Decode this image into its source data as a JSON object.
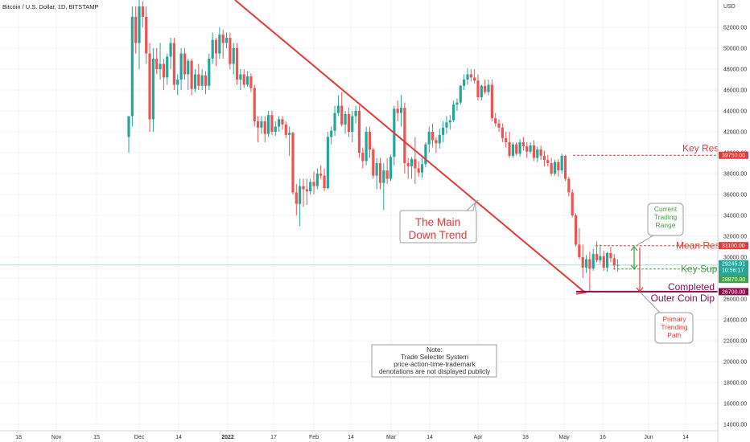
{
  "header": {
    "title": "Bitcoin / U.S. Dollar, 1D, BITSTAMP",
    "currency": "USD"
  },
  "chart_data": {
    "type": "candlestick",
    "y_axis": {
      "range": [
        13000,
        54000
      ],
      "ticks": [
        "52000.00",
        "50000.00",
        "48000.00",
        "46000.00",
        "44000.00",
        "42000.00",
        "40000.00",
        "38000.00",
        "36000.00",
        "34000.00",
        "32000.00",
        "30000.00",
        "28000.00",
        "26000.00",
        "24000.00",
        "22000.00",
        "20000.00",
        "18000.00",
        "16000.00",
        "14000.00"
      ]
    },
    "x_axis": {
      "ticks": [
        "18",
        "Nov",
        "15",
        "Dec",
        "14",
        "2022",
        "17",
        "Feb",
        "14",
        "Mar",
        "14",
        "Apr",
        "18",
        "May",
        "16",
        "Jun",
        "14"
      ]
    },
    "candles": [
      [
        41500,
        43500,
        40000,
        43500
      ],
      [
        43500,
        54000,
        42500,
        53000
      ],
      [
        53000,
        54000,
        49500,
        50500
      ],
      [
        50500,
        55000,
        48000,
        54000
      ],
      [
        54000,
        54500,
        52000,
        53000
      ],
      [
        53000,
        54000,
        48500,
        49500
      ],
      [
        49500,
        50500,
        42000,
        43200
      ],
      [
        43200,
        50000,
        42000,
        49000
      ],
      [
        49000,
        50000,
        47500,
        48000
      ],
      [
        48000,
        50500,
        47000,
        48500
      ],
      [
        48500,
        49000,
        46000,
        47200
      ],
      [
        47200,
        49500,
        46500,
        49200
      ],
      [
        49200,
        51000,
        48000,
        50500
      ],
      [
        50500,
        51000,
        46000,
        46500
      ],
      [
        46500,
        47500,
        45500,
        47000
      ],
      [
        47000,
        50000,
        46000,
        49500
      ],
      [
        49500,
        50000,
        47000,
        47500
      ],
      [
        47500,
        49000,
        46000,
        48800
      ],
      [
        48800,
        49000,
        45500,
        46100
      ],
      [
        46100,
        48000,
        45800,
        47500
      ],
      [
        47500,
        48500,
        46000,
        46400
      ],
      [
        46400,
        48000,
        46000,
        47400
      ],
      [
        47400,
        47800,
        45600,
        46400
      ],
      [
        46400,
        49500,
        46000,
        49000
      ],
      [
        49000,
        51500,
        48500,
        50800
      ],
      [
        50800,
        51000,
        48300,
        49500
      ],
      [
        49500,
        52000,
        49000,
        51300
      ],
      [
        51300,
        51800,
        49000,
        50500
      ],
      [
        50500,
        51500,
        50000,
        51000
      ],
      [
        51000,
        51500,
        48000,
        48500
      ],
      [
        48500,
        50500,
        47500,
        50000
      ],
      [
        50000,
        50500,
        46500,
        47000
      ],
      [
        47000,
        48000,
        46000,
        47500
      ],
      [
        47500,
        48000,
        46200,
        46500
      ],
      [
        46500,
        47800,
        46300,
        47300
      ],
      [
        47300,
        47600,
        45800,
        46200
      ],
      [
        46200,
        46500,
        42500,
        43000
      ],
      [
        43000,
        43500,
        41000,
        42400
      ],
      [
        42400,
        43500,
        41800,
        43000
      ],
      [
        43000,
        43500,
        41000,
        41800
      ],
      [
        41800,
        44000,
        41500,
        43600
      ],
      [
        43600,
        44000,
        41700,
        42000
      ],
      [
        42000,
        43000,
        41600,
        42500
      ],
      [
        42500,
        43500,
        42000,
        43200
      ],
      [
        43200,
        43500,
        42200,
        42700
      ],
      [
        42700,
        43000,
        41400,
        41700
      ],
      [
        41700,
        42500,
        39700,
        41900
      ],
      [
        41900,
        42000,
        36000,
        36200
      ],
      [
        36200,
        37000,
        34000,
        35100
      ],
      [
        35100,
        37500,
        33000,
        36800
      ],
      [
        36800,
        37500,
        34800,
        36500
      ],
      [
        36500,
        37500,
        35000,
        36300
      ],
      [
        36300,
        37500,
        36000,
        37200
      ],
      [
        37200,
        38200,
        36000,
        36800
      ],
      [
        36800,
        38500,
        36500,
        38000
      ],
      [
        38000,
        38800,
        37500,
        37800
      ],
      [
        37800,
        38500,
        36300,
        36600
      ],
      [
        36600,
        42000,
        36500,
        41500
      ],
      [
        41500,
        42500,
        40800,
        42100
      ],
      [
        42100,
        44500,
        41600,
        43800
      ],
      [
        43800,
        45500,
        43500,
        44500
      ],
      [
        44500,
        45800,
        42500,
        42700
      ],
      [
        42700,
        44000,
        41800,
        43700
      ],
      [
        43700,
        44300,
        41500,
        42000
      ],
      [
        42000,
        44000,
        41000,
        43500
      ],
      [
        43500,
        44500,
        42800,
        44000
      ],
      [
        44000,
        44500,
        39500,
        40000
      ],
      [
        40000,
        40500,
        38500,
        39200
      ],
      [
        39200,
        42500,
        38800,
        42000
      ],
      [
        42000,
        42500,
        39500,
        40300
      ],
      [
        40300,
        40500,
        37500,
        37800
      ],
      [
        37800,
        39500,
        36500,
        39000
      ],
      [
        39000,
        39500,
        36500,
        37100
      ],
      [
        37100,
        39000,
        34500,
        38300
      ],
      [
        38300,
        39500,
        37000,
        37500
      ],
      [
        37500,
        39800,
        37300,
        39600
      ],
      [
        39600,
        44500,
        38800,
        44200
      ],
      [
        44200,
        45000,
        43000,
        43800
      ],
      [
        43800,
        45500,
        42500,
        44300
      ],
      [
        44300,
        44800,
        38000,
        39000
      ],
      [
        39000,
        39500,
        37500,
        38700
      ],
      [
        38700,
        39600,
        37500,
        39400
      ],
      [
        39400,
        41500,
        37000,
        38500
      ],
      [
        38500,
        39200,
        37700,
        38100
      ],
      [
        38100,
        39500,
        37600,
        38900
      ],
      [
        38900,
        41000,
        38600,
        40800
      ],
      [
        40800,
        42500,
        40000,
        42000
      ],
      [
        42000,
        42800,
        40500,
        41200
      ],
      [
        41200,
        41500,
        40000,
        40900
      ],
      [
        40900,
        42300,
        40400,
        41700
      ],
      [
        41700,
        43000,
        41000,
        42400
      ],
      [
        42400,
        43500,
        41800,
        42900
      ],
      [
        42900,
        43600,
        42200,
        43100
      ],
      [
        43100,
        45000,
        42900,
        44600
      ],
      [
        44600,
        45200,
        44000,
        44800
      ],
      [
        44800,
        46500,
        44600,
        46400
      ],
      [
        46400,
        47500,
        46000,
        47000
      ],
      [
        47000,
        48100,
        46500,
        47500
      ],
      [
        47500,
        48000,
        46800,
        47200
      ],
      [
        47200,
        48000,
        46600,
        46900
      ],
      [
        46900,
        47500,
        45000,
        45300
      ],
      [
        45300,
        46500,
        45000,
        46400
      ],
      [
        46400,
        47000,
        45600,
        45800
      ],
      [
        45800,
        47000,
        45500,
        46500
      ],
      [
        46500,
        47000,
        43000,
        43300
      ],
      [
        43300,
        43800,
        42500,
        42800
      ],
      [
        42800,
        43200,
        42000,
        42400
      ],
      [
        42400,
        42800,
        41000,
        41400
      ],
      [
        41400,
        42000,
        40500,
        41000
      ],
      [
        41000,
        42000,
        39500,
        39700
      ],
      [
        39700,
        41000,
        39500,
        40800
      ],
      [
        40800,
        41000,
        39700,
        39900
      ],
      [
        39900,
        41300,
        39600,
        41000
      ],
      [
        41000,
        41500,
        40200,
        40600
      ],
      [
        40600,
        41000,
        39500,
        40100
      ],
      [
        40100,
        41000,
        39900,
        40700
      ],
      [
        40700,
        41200,
        39200,
        39500
      ],
      [
        39500,
        40600,
        39100,
        40300
      ],
      [
        40300,
        40700,
        39300,
        39700
      ],
      [
        39700,
        40200,
        38700,
        39300
      ],
      [
        39300,
        39800,
        38700,
        39000
      ],
      [
        39000,
        39500,
        37800,
        38000
      ],
      [
        38000,
        39300,
        37800,
        39100
      ],
      [
        39100,
        39400,
        37700,
        38300
      ],
      [
        38300,
        39900,
        38000,
        39700
      ],
      [
        39700,
        39800,
        37300,
        37500
      ],
      [
        37500,
        37700,
        35800,
        36200
      ],
      [
        36200,
        36500,
        33800,
        34000
      ],
      [
        34000,
        34200,
        31000,
        31200
      ],
      [
        31200,
        32800,
        29800,
        30000
      ],
      [
        30000,
        31200,
        28000,
        29000
      ],
      [
        29000,
        30200,
        28500,
        29800
      ],
      [
        29800,
        30500,
        26700,
        28900
      ],
      [
        28900,
        30800,
        28700,
        30300
      ],
      [
        30300,
        31500,
        29500,
        29700
      ],
      [
        29700,
        31200,
        29400,
        30100
      ],
      [
        30100,
        30600,
        28700,
        29000
      ],
      [
        29000,
        30500,
        28600,
        30400
      ],
      [
        30400,
        31000,
        29500,
        29900
      ],
      [
        29900,
        30300,
        28800,
        29200
      ],
      [
        29200,
        29800,
        28600,
        29250
      ]
    ],
    "levels": [
      {
        "name": "Key Res",
        "value": 39750,
        "tag": "39750.00"
      },
      {
        "name": "Mean Res",
        "value": 31100,
        "tag": "31100.00"
      },
      {
        "name": "Key Sup",
        "value": 28870,
        "tag": "28870.00"
      },
      {
        "name": "Completed Outer Coin Dip",
        "value": 26700,
        "tag": "26700.00"
      }
    ],
    "current": {
      "price": "29245.91",
      "countdown": "10:56:17"
    }
  },
  "annotations": {
    "main_trend": [
      "The Main",
      "Down Trend"
    ],
    "current_range": [
      "Current",
      "Trading",
      "Range"
    ],
    "primary_path": [
      "Primary",
      "Trending",
      "Path"
    ],
    "key_res": "Key Res",
    "mean_res": "Mean Res",
    "key_sup": "Key Sup",
    "completed": "Completed",
    "outer_dip": "Outer Coin Dip",
    "note": [
      "Note:",
      "Trade Selecter System",
      "price-action-time-trademark",
      "denotations are not displayed publicly"
    ]
  },
  "colors": {
    "up": "#26a69a",
    "down": "#ef5350",
    "trend": "#e53935",
    "purple": "#880e4f",
    "green": "#43a047",
    "red": "#e53935",
    "grid": "#f0f3fa",
    "axis": "#d1d4dc",
    "current_line": "#26a69a"
  }
}
